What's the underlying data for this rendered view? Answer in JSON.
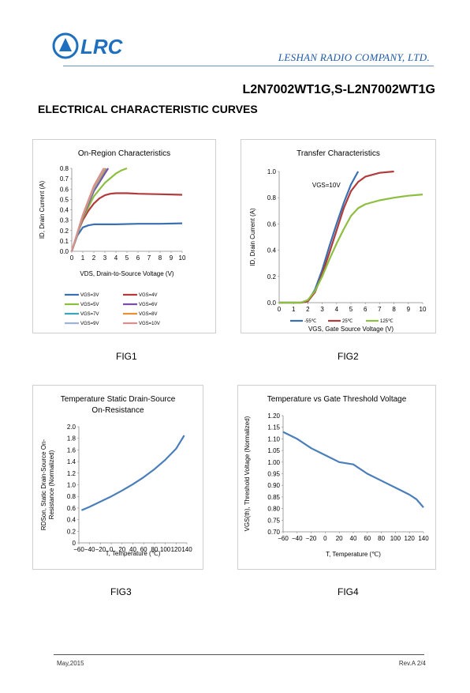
{
  "header": {
    "logo_text": "LRC",
    "company": "LESHAN RADIO COMPANY, LTD.",
    "part_number": "L2N7002WT1G,S-L2N7002WT1G",
    "section_title": "ELECTRICAL CHARACTERISTIC CURVES"
  },
  "colors": {
    "brand_blue": "#1f6fbf",
    "axis": "#888888"
  },
  "figures": [
    {
      "label": "FIG1"
    },
    {
      "label": "FIG2"
    },
    {
      "label": "FIG3"
    },
    {
      "label": "FIG4"
    }
  ],
  "footer": {
    "date": "May,2015",
    "rev": "Rev.A 2/4"
  },
  "chart_data": [
    {
      "type": "line",
      "title": "On-Region Characteristics",
      "xlabel": "VDS, Drain-to-Source Voltage (V)",
      "ylabel": "ID, Drain Current (A)",
      "xlim": [
        0,
        10
      ],
      "ylim": [
        0,
        0.8
      ],
      "xticks": [
        "0",
        "1",
        "2",
        "3",
        "4",
        "5",
        "6",
        "7",
        "8",
        "9",
        "10"
      ],
      "yticks": [
        "0.0",
        "0.1",
        "0.2",
        "0.3",
        "0.4",
        "0.5",
        "0.6",
        "0.7",
        "0.8"
      ],
      "legend_position": "bottom",
      "series": [
        {
          "name": "VGS=3V",
          "color": "#3a6fb0",
          "x": [
            0,
            0.5,
            1,
            1.5,
            2,
            3,
            4,
            6,
            8,
            10
          ],
          "y": [
            0,
            0.15,
            0.23,
            0.25,
            0.26,
            0.26,
            0.26,
            0.265,
            0.265,
            0.27
          ]
        },
        {
          "name": "VGS=4V",
          "color": "#b33a3a",
          "x": [
            0,
            0.5,
            1,
            1.5,
            2,
            2.5,
            3,
            3.5,
            4,
            5,
            6,
            8,
            10
          ],
          "y": [
            0,
            0.17,
            0.3,
            0.39,
            0.46,
            0.51,
            0.54,
            0.555,
            0.56,
            0.56,
            0.555,
            0.55,
            0.545
          ]
        },
        {
          "name": "VGS=5V",
          "color": "#8cbf3f",
          "x": [
            0,
            1,
            2,
            3,
            4,
            4.5,
            5
          ],
          "y": [
            0,
            0.32,
            0.53,
            0.66,
            0.75,
            0.78,
            0.8
          ]
        },
        {
          "name": "VGS=6V",
          "color": "#7a4fa8",
          "x": [
            0,
            1,
            2,
            3,
            3.3
          ],
          "y": [
            0,
            0.33,
            0.58,
            0.75,
            0.8
          ]
        },
        {
          "name": "VGS=7V",
          "color": "#3aa6b8",
          "x": [
            0,
            1,
            2,
            3,
            3.1
          ],
          "y": [
            0,
            0.34,
            0.6,
            0.78,
            0.8
          ]
        },
        {
          "name": "VGS=8V",
          "color": "#e69138",
          "x": [
            0,
            1,
            2,
            3,
            3.05
          ],
          "y": [
            0,
            0.34,
            0.61,
            0.79,
            0.8
          ]
        },
        {
          "name": "VGS=9V",
          "color": "#9bb3d9",
          "x": [
            0,
            1,
            2,
            2.95
          ],
          "y": [
            0,
            0.35,
            0.62,
            0.8
          ]
        },
        {
          "name": "VGS=10V",
          "color": "#d9908a",
          "x": [
            0,
            1,
            2,
            2.9
          ],
          "y": [
            0,
            0.35,
            0.63,
            0.8
          ]
        }
      ]
    },
    {
      "type": "line",
      "title": "Transfer Characteristics",
      "xlabel": "VGS, Gate Source Voltage (V)",
      "ylabel": "ID, Drain Current (A)",
      "annotation": "VGS=10V",
      "xlim": [
        0,
        10
      ],
      "ylim": [
        0,
        1.0
      ],
      "xticks": [
        "0",
        "1",
        "2",
        "3",
        "4",
        "5",
        "6",
        "7",
        "8",
        "9",
        "10"
      ],
      "yticks": [
        "0.0",
        "0.2",
        "0.4",
        "0.6",
        "0.8",
        "1.0"
      ],
      "legend_position": "bottom",
      "series": [
        {
          "name": "-55℃",
          "color": "#3a6fb0",
          "x": [
            0,
            1,
            1.5,
            2,
            2.5,
            3,
            3.5,
            4,
            4.5,
            5,
            5.5
          ],
          "y": [
            0,
            0,
            0,
            0.01,
            0.1,
            0.25,
            0.43,
            0.6,
            0.76,
            0.9,
            1.0
          ]
        },
        {
          "name": "25℃",
          "color": "#b33a3a",
          "x": [
            0,
            1.5,
            2,
            2.5,
            3,
            3.5,
            4,
            4.5,
            5,
            5.5,
            6,
            7,
            8
          ],
          "y": [
            0,
            0,
            0.01,
            0.08,
            0.22,
            0.38,
            0.55,
            0.72,
            0.85,
            0.92,
            0.96,
            0.99,
            1.0
          ]
        },
        {
          "name": "125℃",
          "color": "#8cbf3f",
          "x": [
            0,
            1.5,
            2,
            2.5,
            3,
            3.5,
            4,
            4.5,
            5,
            5.5,
            6,
            7,
            8,
            9,
            10
          ],
          "y": [
            0,
            0,
            0.02,
            0.09,
            0.2,
            0.33,
            0.45,
            0.56,
            0.66,
            0.72,
            0.75,
            0.78,
            0.8,
            0.815,
            0.825
          ]
        }
      ]
    },
    {
      "type": "line",
      "title": "Temperature Static Drain-Source On-Resistance",
      "title_lines": [
        "Temperature Static Drain-Source",
        "On-Resistance"
      ],
      "xlabel": "T, Temperature (℃)",
      "ylabel": "RDSon, Static Drain-Source On-Resistance (Normalized)",
      "ylabel_lines": [
        "RDSon, Static Drain-Source On-",
        "Resistance (Normalized)"
      ],
      "xlim": [
        -60,
        140
      ],
      "ylim": [
        0,
        2.0
      ],
      "xticks": [
        "−60",
        "−40",
        "−20",
        "0",
        "20",
        "40",
        "60",
        "80",
        "100",
        "120",
        "140"
      ],
      "yticks": [
        "0",
        "0.2",
        "0.4",
        "0.6",
        "0.8",
        "1.0",
        "1.2",
        "1.4",
        "1.6",
        "1.8",
        "2.0"
      ],
      "series": [
        {
          "name": "",
          "color": "#4a7ebb",
          "x": [
            -55,
            -40,
            -20,
            0,
            20,
            40,
            60,
            80,
            100,
            120,
            135
          ],
          "y": [
            0.56,
            0.62,
            0.71,
            0.8,
            0.9,
            1.01,
            1.13,
            1.27,
            1.43,
            1.62,
            1.85
          ]
        }
      ]
    },
    {
      "type": "line",
      "title": "Temperature vs Gate Threshold Voltage",
      "xlabel": "T, Temperature (℃)",
      "ylabel": "VGS(th), Threshold Voltage (Normalized)",
      "xlim": [
        -60,
        140
      ],
      "ylim": [
        0.7,
        1.2
      ],
      "xticks": [
        "−60",
        "−40",
        "−20",
        "0",
        "20",
        "40",
        "60",
        "80",
        "100",
        "120",
        "140"
      ],
      "yticks": [
        "0.70",
        "0.75",
        "0.80",
        "0.85",
        "0.90",
        "0.95",
        "1.00",
        "1.05",
        "1.10",
        "1.15",
        "1.20"
      ],
      "series": [
        {
          "name": "",
          "color": "#4a7ebb",
          "x": [
            -60,
            -40,
            -20,
            0,
            20,
            40,
            60,
            80,
            100,
            120,
            130,
            140
          ],
          "y": [
            1.13,
            1.1,
            1.06,
            1.03,
            1.0,
            0.99,
            0.95,
            0.92,
            0.89,
            0.86,
            0.84,
            0.805
          ]
        }
      ]
    }
  ]
}
